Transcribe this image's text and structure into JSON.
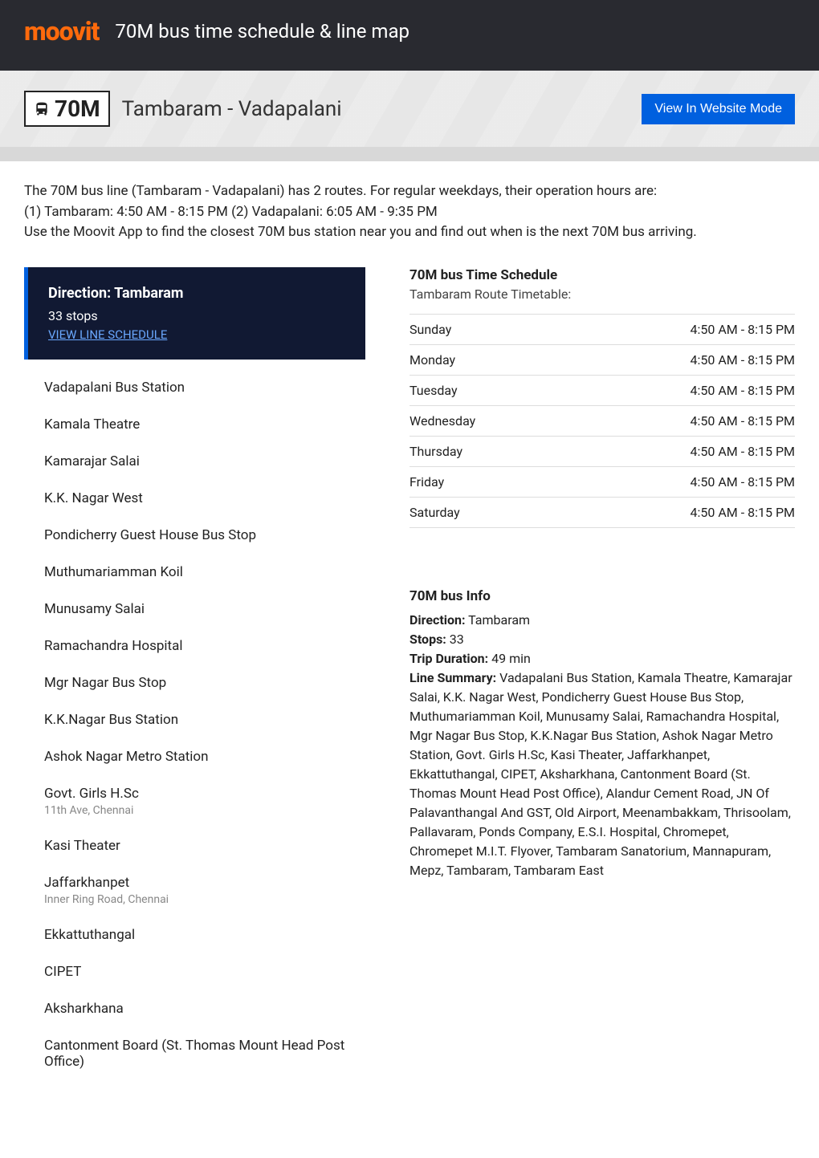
{
  "brand": "moovit",
  "header_title": "70M bus time schedule & line map",
  "route_badge": "70M",
  "route_name": "Tambaram - Vadapalani",
  "website_btn": "View In Website Mode",
  "intro_line1": "The 70M bus line (Tambaram - Vadapalani) has 2 routes. For regular weekdays, their operation hours are:",
  "intro_line2": "(1) Tambaram: 4:50 AM - 8:15 PM (2) Vadapalani: 6:05 AM - 9:35 PM",
  "intro_line3": "Use the Moovit App to find the closest 70M bus station near you and find out when is the next 70M bus arriving.",
  "direction": {
    "title": "Direction: Tambaram",
    "stops": "33 stops",
    "link": "VIEW LINE SCHEDULE"
  },
  "stops": [
    {
      "name": "Vadapalani Bus Station"
    },
    {
      "name": "Kamala Theatre"
    },
    {
      "name": "Kamarajar Salai"
    },
    {
      "name": "K.K. Nagar West"
    },
    {
      "name": "Pondicherry Guest House Bus Stop"
    },
    {
      "name": "Muthumariamman Koil"
    },
    {
      "name": "Munusamy Salai"
    },
    {
      "name": "Ramachandra Hospital"
    },
    {
      "name": "Mgr Nagar Bus Stop"
    },
    {
      "name": "K.K.Nagar Bus Station"
    },
    {
      "name": "Ashok Nagar Metro Station"
    },
    {
      "name": "Govt. Girls H.Sc",
      "sub": "11th Ave, Chennai"
    },
    {
      "name": "Kasi Theater"
    },
    {
      "name": "Jaffarkhanpet",
      "sub": "Inner Ring Road, Chennai"
    },
    {
      "name": "Ekkattuthangal"
    },
    {
      "name": "CIPET"
    },
    {
      "name": "Aksharkhana"
    },
    {
      "name": "Cantonment Board (St. Thomas Mount Head Post Office)"
    }
  ],
  "schedule": {
    "title": "70M bus Time Schedule",
    "subtitle": "Tambaram Route Timetable:",
    "rows": [
      {
        "day": "Sunday",
        "time": "4:50 AM - 8:15 PM"
      },
      {
        "day": "Monday",
        "time": "4:50 AM - 8:15 PM"
      },
      {
        "day": "Tuesday",
        "time": "4:50 AM - 8:15 PM"
      },
      {
        "day": "Wednesday",
        "time": "4:50 AM - 8:15 PM"
      },
      {
        "day": "Thursday",
        "time": "4:50 AM - 8:15 PM"
      },
      {
        "day": "Friday",
        "time": "4:50 AM - 8:15 PM"
      },
      {
        "day": "Saturday",
        "time": "4:50 AM - 8:15 PM"
      }
    ]
  },
  "info": {
    "title": "70M bus Info",
    "direction_label": "Direction:",
    "direction_value": " Tambaram",
    "stops_label": "Stops:",
    "stops_value": " 33",
    "duration_label": "Trip Duration:",
    "duration_value": " 49 min",
    "summary_label": "Line Summary:",
    "summary_value": " Vadapalani Bus Station, Kamala Theatre, Kamarajar Salai, K.K. Nagar West, Pondicherry Guest House Bus Stop, Muthumariamman Koil, Munusamy Salai, Ramachandra Hospital, Mgr Nagar Bus Stop, K.K.Nagar Bus Station, Ashok Nagar Metro Station, Govt. Girls H.Sc, Kasi Theater, Jaffarkhanpet, Ekkattuthangal, CIPET, Aksharkhana, Cantonment Board (St. Thomas Mount Head Post Office), Alandur Cement Road, JN Of Palavanthangal And GST, Old Airport, Meenambakkam, Thrisoolam, Pallavaram, Ponds Company, E.S.I. Hospital, Chromepet, Chromepet M.I.T. Flyover, Tambaram Sanatorium, Mannapuram, Mepz, Tambaram, Tambaram East"
  },
  "colors": {
    "brand": "#ff6a0c",
    "header_bg": "#292a30",
    "primary_blue": "#0060df",
    "dark_box": "#111933",
    "link_blue": "#6aa8ff"
  }
}
